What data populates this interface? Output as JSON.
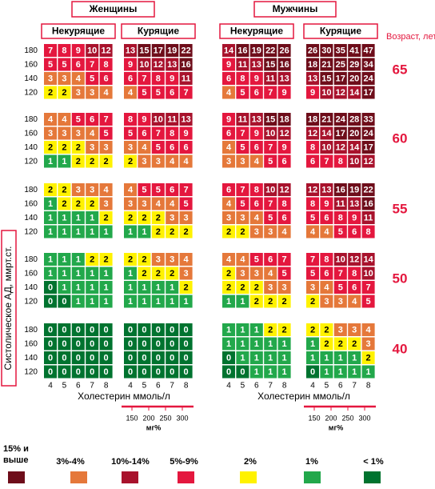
{
  "sexes": [
    {
      "label": "Женщины",
      "groups": [
        "Некурящие",
        "Курящие"
      ]
    },
    {
      "label": "Мужчины",
      "groups": [
        "Некурящие",
        "Курящие"
      ]
    }
  ],
  "age_title": "Возраст, лет",
  "bp_axis_label": "Систолическое АД, ммрт.ст.",
  "bp_levels": [
    180,
    160,
    140,
    120
  ],
  "cholesterol": [
    4,
    5,
    6,
    7,
    8
  ],
  "cholesterol_label": "Холестерин ммоль/л",
  "mg_ticks": [
    150,
    200,
    250,
    300
  ],
  "mg_label": "мг%",
  "ages": [
    {
      "age": 65,
      "panels": [
        [
          [
            7,
            8,
            9,
            10,
            12
          ],
          [
            5,
            5,
            6,
            7,
            8
          ],
          [
            3,
            3,
            4,
            5,
            6
          ],
          [
            2,
            2,
            3,
            3,
            4
          ]
        ],
        [
          [
            13,
            15,
            17,
            19,
            22
          ],
          [
            9,
            10,
            12,
            13,
            16
          ],
          [
            6,
            7,
            8,
            9,
            11
          ],
          [
            4,
            5,
            5,
            6,
            7
          ]
        ],
        [
          [
            14,
            16,
            19,
            22,
            26
          ],
          [
            9,
            11,
            13,
            15,
            16
          ],
          [
            6,
            8,
            9,
            11,
            13
          ],
          [
            4,
            5,
            6,
            7,
            9
          ]
        ],
        [
          [
            26,
            30,
            35,
            41,
            47
          ],
          [
            18,
            21,
            25,
            29,
            34
          ],
          [
            13,
            15,
            17,
            20,
            24
          ],
          [
            9,
            10,
            12,
            14,
            17
          ]
        ]
      ]
    },
    {
      "age": 60,
      "panels": [
        [
          [
            4,
            4,
            5,
            6,
            7
          ],
          [
            3,
            3,
            3,
            4,
            5
          ],
          [
            2,
            2,
            2,
            3,
            3
          ],
          [
            1,
            1,
            2,
            2,
            2
          ]
        ],
        [
          [
            8,
            9,
            10,
            11,
            13
          ],
          [
            5,
            6,
            7,
            8,
            9
          ],
          [
            3,
            4,
            5,
            6,
            6
          ],
          [
            2,
            3,
            3,
            4,
            4
          ]
        ],
        [
          [
            9,
            11,
            13,
            15,
            18
          ],
          [
            6,
            7,
            9,
            10,
            12
          ],
          [
            4,
            5,
            6,
            7,
            9
          ],
          [
            3,
            3,
            4,
            5,
            6
          ]
        ],
        [
          [
            18,
            21,
            24,
            28,
            33
          ],
          [
            12,
            14,
            17,
            20,
            24
          ],
          [
            8,
            10,
            12,
            14,
            17
          ],
          [
            6,
            7,
            8,
            10,
            12
          ]
        ]
      ]
    },
    {
      "age": 55,
      "panels": [
        [
          [
            2,
            2,
            3,
            3,
            4
          ],
          [
            1,
            2,
            2,
            2,
            3
          ],
          [
            1,
            1,
            1,
            1,
            2
          ],
          [
            1,
            1,
            1,
            1,
            1
          ]
        ],
        [
          [
            4,
            5,
            5,
            6,
            7
          ],
          [
            3,
            3,
            4,
            4,
            5
          ],
          [
            2,
            2,
            2,
            3,
            3
          ],
          [
            1,
            1,
            2,
            2,
            2
          ]
        ],
        [
          [
            6,
            7,
            8,
            10,
            12
          ],
          [
            4,
            5,
            6,
            7,
            8
          ],
          [
            3,
            3,
            4,
            5,
            6
          ],
          [
            2,
            2,
            3,
            3,
            4
          ]
        ],
        [
          [
            12,
            13,
            16,
            19,
            22
          ],
          [
            8,
            9,
            11,
            13,
            16
          ],
          [
            5,
            6,
            8,
            9,
            11
          ],
          [
            4,
            4,
            5,
            6,
            8
          ]
        ]
      ]
    },
    {
      "age": 50,
      "panels": [
        [
          [
            1,
            1,
            1,
            2,
            2
          ],
          [
            1,
            1,
            1,
            1,
            1
          ],
          [
            0,
            1,
            1,
            1,
            1
          ],
          [
            0,
            0,
            1,
            1,
            1
          ]
        ],
        [
          [
            2,
            2,
            3,
            3,
            4
          ],
          [
            1,
            2,
            2,
            2,
            3
          ],
          [
            1,
            1,
            1,
            1,
            2
          ],
          [
            1,
            1,
            1,
            1,
            1
          ]
        ],
        [
          [
            4,
            4,
            5,
            6,
            7
          ],
          [
            2,
            3,
            3,
            4,
            5
          ],
          [
            2,
            2,
            2,
            3,
            3
          ],
          [
            1,
            1,
            2,
            2,
            2
          ]
        ],
        [
          [
            7,
            8,
            10,
            12,
            14
          ],
          [
            5,
            6,
            7,
            8,
            10
          ],
          [
            3,
            4,
            5,
            6,
            7
          ],
          [
            2,
            3,
            3,
            4,
            5
          ]
        ]
      ]
    },
    {
      "age": 40,
      "panels": [
        [
          [
            0,
            0,
            0,
            0,
            0
          ],
          [
            0,
            0,
            0,
            0,
            0
          ],
          [
            0,
            0,
            0,
            0,
            0
          ],
          [
            0,
            0,
            0,
            0,
            0
          ]
        ],
        [
          [
            0,
            0,
            0,
            0,
            0
          ],
          [
            0,
            0,
            0,
            0,
            0
          ],
          [
            0,
            0,
            0,
            0,
            0
          ],
          [
            0,
            0,
            0,
            0,
            0
          ]
        ],
        [
          [
            1,
            1,
            1,
            2,
            2
          ],
          [
            1,
            1,
            1,
            1,
            1
          ],
          [
            0,
            1,
            1,
            1,
            1
          ],
          [
            0,
            0,
            1,
            1,
            1
          ]
        ],
        [
          [
            2,
            2,
            3,
            3,
            4
          ],
          [
            1,
            2,
            2,
            2,
            3
          ],
          [
            1,
            1,
            1,
            1,
            2
          ],
          [
            0,
            1,
            1,
            1,
            1
          ]
        ]
      ]
    }
  ],
  "legend": [
    {
      "label": "15% и выше",
      "color": "#6e0d1a"
    },
    {
      "label": "3%-4%",
      "color": "#e5783a"
    },
    {
      "label": "10%-14%",
      "color": "#a8122c"
    },
    {
      "label": "5%-9%",
      "color": "#e4173e"
    },
    {
      "label": "2%",
      "color": "#fff200"
    },
    {
      "label": "1%",
      "color": "#22a84b"
    },
    {
      "label": "< 1%",
      "color": "#00732f"
    }
  ]
}
